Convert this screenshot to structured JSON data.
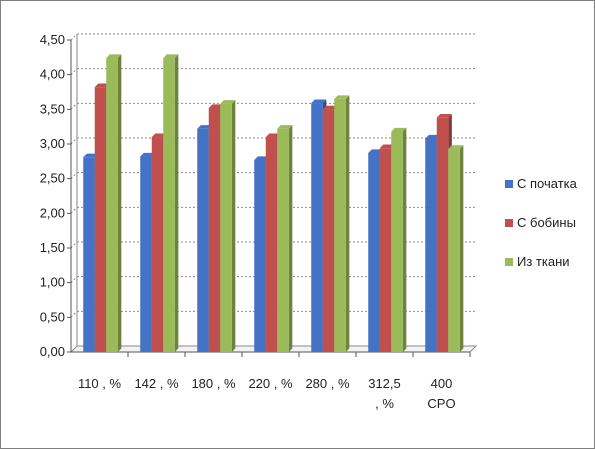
{
  "chart_data": {
    "type": "bar",
    "title": "",
    "xlabel": "",
    "ylabel": "",
    "ylim": [
      0,
      4.5
    ],
    "y_ticks": [
      "0,00",
      "0,50",
      "1,00",
      "1,50",
      "2,00",
      "2,50",
      "3,00",
      "3,50",
      "4,00",
      "4,50"
    ],
    "categories": [
      [
        "110 , %"
      ],
      [
        "142 , %"
      ],
      [
        "180 , %"
      ],
      [
        "220 , %"
      ],
      [
        "280 , %"
      ],
      [
        "312,5",
        ", %"
      ],
      [
        "400",
        "CPO"
      ]
    ],
    "series": [
      {
        "name": "С початка",
        "color": "#4472C4",
        "values": [
          2.81,
          2.82,
          3.22,
          2.77,
          3.59,
          2.87,
          3.08
        ]
      },
      {
        "name": "С бобины",
        "color": "#C0504D",
        "values": [
          3.82,
          3.1,
          3.52,
          3.1,
          3.5,
          2.94,
          3.38
        ]
      },
      {
        "name": "Из ткани",
        "color": "#9BBB59",
        "values": [
          4.24,
          4.24,
          3.58,
          3.22,
          3.65,
          3.18,
          2.93
        ]
      }
    ],
    "grid": true,
    "legend_position": "right"
  }
}
